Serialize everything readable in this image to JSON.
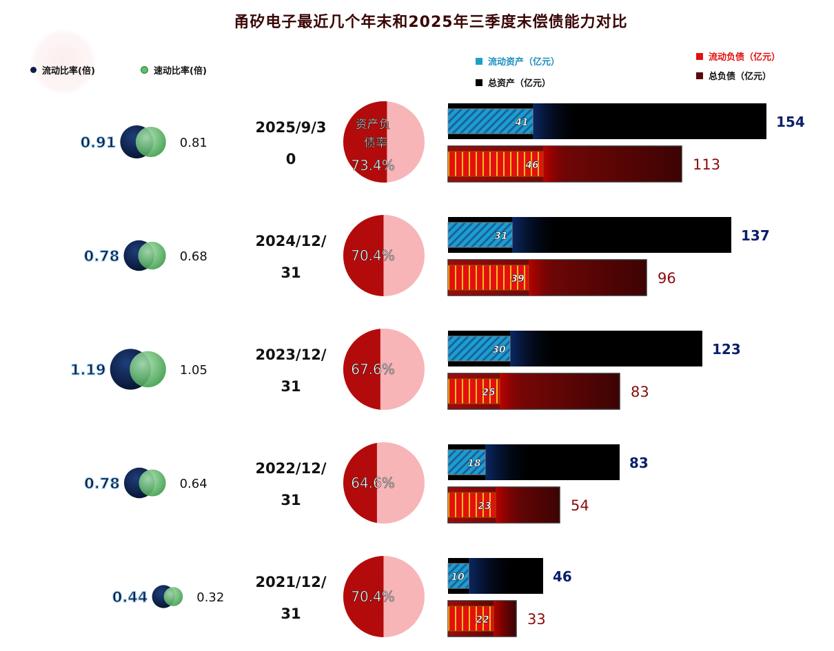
{
  "chart_data": {
    "type": "bar",
    "title": "甬矽电子最近几个年末和2025年三季度末偿债能力对比",
    "legend_ratio": [
      {
        "name": "流动比率(倍)",
        "color": "#0b1f4a"
      },
      {
        "name": "速动比率(倍)",
        "color": "#5fbf6a"
      }
    ],
    "legend_bars": [
      {
        "name": "流动资产（亿元）",
        "color": "#1ba0c8"
      },
      {
        "name": "总资产（亿元）",
        "color": "#000000"
      },
      {
        "name": "流动负债（亿元）",
        "color": "#e31010"
      },
      {
        "name": "总负债（亿元）",
        "color": "#5a0a0a"
      }
    ],
    "categories": [
      {
        "line1": "2025/9/3",
        "line2": "0"
      },
      {
        "line1": "2024/12/",
        "line2": "31"
      },
      {
        "line1": "2023/12/",
        "line2": "31"
      },
      {
        "line1": "2022/12/",
        "line2": "31"
      },
      {
        "line1": "2021/12/",
        "line2": "31"
      }
    ],
    "current_ratio": [
      "0.91",
      "0.78",
      "1.19",
      "0.78",
      "0.44"
    ],
    "quick_ratio": [
      "0.81",
      "0.68",
      "1.05",
      "0.64",
      "0.32"
    ],
    "debt_ratio_label": "资产负债率",
    "debt_ratio": [
      "73.4%",
      "70.4%",
      "67.6%",
      "64.6%",
      "70.4%"
    ],
    "series": [
      {
        "name": "总资产（亿元）",
        "values": [
          154,
          137,
          123,
          83,
          46
        ]
      },
      {
        "name": "流动资产（亿元）",
        "values": [
          41,
          31,
          30,
          18,
          10
        ]
      },
      {
        "name": "总负债（亿元）",
        "values": [
          113,
          96,
          83,
          54,
          33
        ]
      },
      {
        "name": "流动负债（亿元）",
        "values": [
          46,
          39,
          25,
          23,
          22
        ]
      }
    ]
  }
}
